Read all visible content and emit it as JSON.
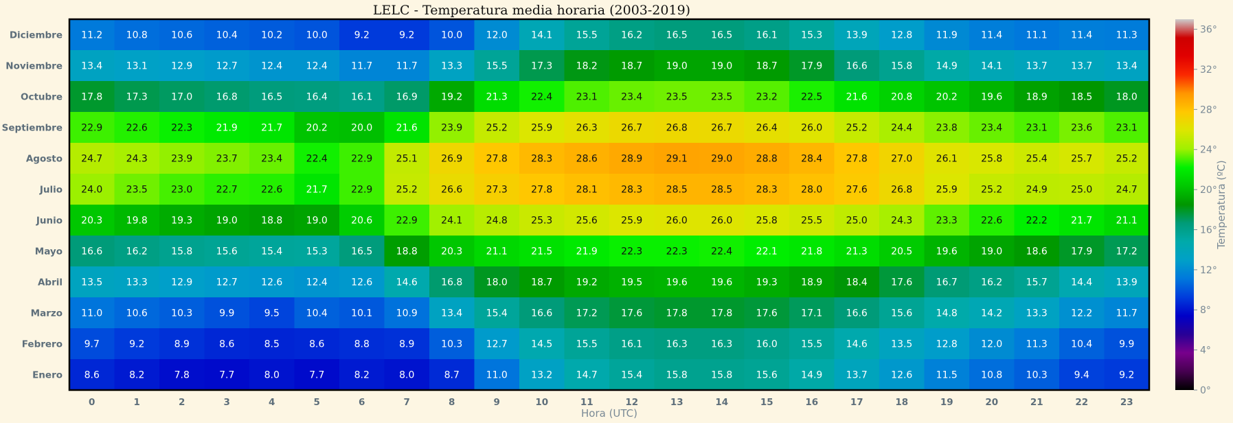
{
  "chart_data": {
    "type": "heatmap",
    "title": "LELC - Temperatura media horaria (2003-2019)",
    "xlabel": "Hora (UTC)",
    "ylabel": "",
    "x": [
      "0",
      "1",
      "2",
      "3",
      "4",
      "5",
      "6",
      "7",
      "8",
      "9",
      "10",
      "11",
      "12",
      "13",
      "14",
      "15",
      "16",
      "17",
      "18",
      "19",
      "20",
      "21",
      "22",
      "23"
    ],
    "y": [
      "Diciembre",
      "Noviembre",
      "Octubre",
      "Septiembre",
      "Agosto",
      "Julio",
      "Junio",
      "Mayo",
      "Abril",
      "Marzo",
      "Febrero",
      "Enero"
    ],
    "values": [
      [
        11.2,
        10.8,
        10.6,
        10.4,
        10.2,
        10.0,
        9.2,
        9.2,
        10.0,
        12.0,
        14.1,
        15.5,
        16.2,
        16.5,
        16.5,
        16.1,
        15.3,
        13.9,
        12.8,
        11.9,
        11.4,
        11.1,
        11.4,
        11.3
      ],
      [
        13.4,
        13.1,
        12.9,
        12.7,
        12.4,
        12.4,
        11.7,
        11.7,
        13.3,
        15.5,
        17.3,
        18.2,
        18.7,
        19.0,
        19.0,
        18.7,
        17.9,
        16.6,
        15.8,
        14.9,
        14.1,
        13.7,
        13.7,
        13.4
      ],
      [
        17.8,
        17.3,
        17.0,
        16.8,
        16.5,
        16.4,
        16.1,
        16.9,
        19.2,
        21.3,
        22.4,
        23.1,
        23.4,
        23.5,
        23.5,
        23.2,
        22.5,
        21.6,
        20.8,
        20.2,
        19.6,
        18.9,
        18.5,
        18.0
      ],
      [
        22.9,
        22.6,
        22.3,
        21.9,
        21.7,
        20.2,
        20.0,
        21.6,
        23.9,
        25.2,
        25.9,
        26.3,
        26.7,
        26.8,
        26.7,
        26.4,
        26.0,
        25.2,
        24.4,
        23.8,
        23.4,
        23.1,
        23.6,
        23.1
      ],
      [
        24.7,
        24.3,
        23.9,
        23.7,
        23.4,
        22.4,
        22.9,
        25.1,
        26.9,
        27.8,
        28.3,
        28.6,
        28.9,
        29.1,
        29.0,
        28.8,
        28.4,
        27.8,
        27.0,
        26.1,
        25.8,
        25.4,
        25.7,
        25.2
      ],
      [
        24.0,
        23.5,
        23.0,
        22.7,
        22.6,
        21.7,
        22.9,
        25.2,
        26.6,
        27.3,
        27.8,
        28.1,
        28.3,
        28.5,
        28.5,
        28.3,
        28.0,
        27.6,
        26.8,
        25.9,
        25.2,
        24.9,
        25.0,
        24.7
      ],
      [
        20.3,
        19.8,
        19.3,
        19.0,
        18.8,
        19.0,
        20.6,
        22.9,
        24.1,
        24.8,
        25.3,
        25.6,
        25.9,
        26.0,
        26.0,
        25.8,
        25.5,
        25.0,
        24.3,
        23.3,
        22.6,
        22.2,
        21.7,
        21.1
      ],
      [
        16.6,
        16.2,
        15.8,
        15.6,
        15.4,
        15.3,
        16.5,
        18.8,
        20.3,
        21.1,
        21.5,
        21.9,
        22.3,
        22.3,
        22.4,
        22.1,
        21.8,
        21.3,
        20.5,
        19.6,
        19.0,
        18.6,
        17.9,
        17.2
      ],
      [
        13.5,
        13.3,
        12.9,
        12.7,
        12.6,
        12.4,
        12.6,
        14.6,
        16.8,
        18.0,
        18.7,
        19.2,
        19.5,
        19.6,
        19.6,
        19.3,
        18.9,
        18.4,
        17.6,
        16.7,
        16.2,
        15.7,
        14.4,
        13.9
      ],
      [
        11.0,
        10.6,
        10.3,
        9.9,
        9.5,
        10.4,
        10.1,
        10.9,
        13.4,
        15.4,
        16.6,
        17.2,
        17.6,
        17.8,
        17.8,
        17.6,
        17.1,
        16.6,
        15.6,
        14.8,
        14.2,
        13.3,
        12.2,
        11.7
      ],
      [
        9.7,
        9.2,
        8.9,
        8.6,
        8.5,
        8.6,
        8.8,
        8.9,
        10.3,
        12.7,
        14.5,
        15.5,
        16.1,
        16.3,
        16.3,
        16.0,
        15.5,
        14.6,
        13.5,
        12.8,
        12.0,
        11.3,
        10.4,
        9.9
      ],
      [
        8.6,
        8.2,
        7.8,
        7.7,
        8.0,
        7.7,
        8.2,
        8.0,
        8.7,
        11.0,
        13.2,
        14.7,
        15.4,
        15.8,
        15.8,
        15.6,
        14.9,
        13.7,
        12.6,
        11.5,
        10.8,
        10.3,
        9.4,
        9.2
      ]
    ],
    "colorbar": {
      "label": "Temperatura (ºC)",
      "range": [
        0,
        37
      ],
      "ticks": [
        "0°",
        "4°",
        "8°",
        "12°",
        "16°",
        "20°",
        "24°",
        "28°",
        "32°",
        "36°"
      ],
      "tick_values": [
        0,
        4,
        8,
        12,
        16,
        20,
        24,
        28,
        32,
        36
      ],
      "colormap": "nipy_spectral"
    }
  }
}
